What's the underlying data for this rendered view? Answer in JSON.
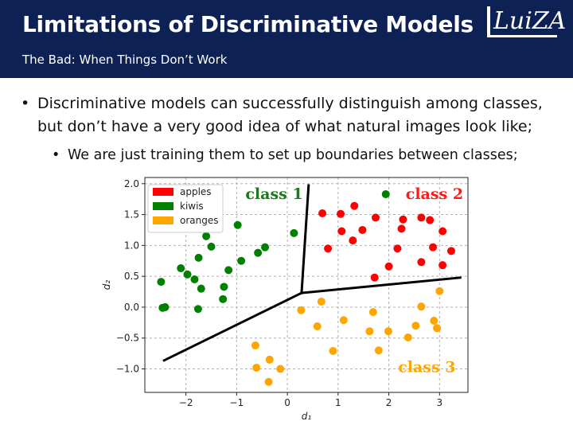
{
  "header": {
    "title": "Limitations of Discriminative Models",
    "subtitle": "The Bad: When Things Don’t Work",
    "logo": "LuiZA"
  },
  "bullets": [
    {
      "text": "Discriminative models can successfully distinguish among classes, but don’t have a very good idea of what natural images look like;"
    },
    {
      "text": "We are just training them to set up boundaries between classes;"
    }
  ],
  "colors": {
    "header_bg": "#0d2155",
    "apples": "#ff0000",
    "kiwis": "#008000",
    "oranges": "#ffa500"
  },
  "chart_data": {
    "type": "scatter",
    "xlabel": "d₁",
    "ylabel": "d₂",
    "xlim": [
      -2.81,
      3.56
    ],
    "ylim": [
      -1.38,
      2.1
    ],
    "xticks": [
      -2,
      -1,
      0,
      1,
      2,
      3
    ],
    "xtick_labels": [
      "−2",
      "−1",
      "0",
      "1",
      "2",
      "3"
    ],
    "yticks": [
      -1,
      -0.5,
      0,
      0.5,
      1,
      1.5,
      2
    ],
    "ytick_labels": [
      "−1.0",
      "−0.5",
      "0.0",
      "0.5",
      "1.0",
      "1.5",
      "2.0"
    ],
    "grid": true,
    "legend_position": "top-left",
    "series": [
      {
        "name": "apples",
        "color": "#ff0000",
        "points": [
          [
            0.69,
            1.52
          ],
          [
            1.05,
            1.51
          ],
          [
            1.32,
            1.64
          ],
          [
            1.74,
            1.45
          ],
          [
            2.28,
            1.42
          ],
          [
            2.64,
            1.45
          ],
          [
            2.81,
            1.41
          ],
          [
            2.25,
            1.27
          ],
          [
            1.07,
            1.23
          ],
          [
            1.48,
            1.25
          ],
          [
            1.29,
            1.08
          ],
          [
            3.06,
            1.23
          ],
          [
            0.8,
            0.95
          ],
          [
            2.17,
            0.95
          ],
          [
            2.87,
            0.97
          ],
          [
            3.23,
            0.91
          ],
          [
            2.64,
            0.73
          ],
          [
            3.06,
            0.68
          ],
          [
            2.0,
            0.66
          ],
          [
            1.72,
            0.48
          ]
        ]
      },
      {
        "name": "kiwis",
        "color": "#008000",
        "points": [
          [
            1.94,
            1.83
          ],
          [
            -0.98,
            1.33
          ],
          [
            0.13,
            1.2
          ],
          [
            -1.6,
            1.15
          ],
          [
            -1.5,
            0.98
          ],
          [
            -0.44,
            0.97
          ],
          [
            -0.58,
            0.88
          ],
          [
            -1.75,
            0.8
          ],
          [
            -0.91,
            0.75
          ],
          [
            -1.16,
            0.6
          ],
          [
            -2.1,
            0.63
          ],
          [
            -1.97,
            0.53
          ],
          [
            -1.83,
            0.45
          ],
          [
            -2.49,
            0.41
          ],
          [
            -1.7,
            0.3
          ],
          [
            -1.25,
            0.33
          ],
          [
            -1.27,
            0.13
          ],
          [
            -2.46,
            -0.01
          ],
          [
            -2.41,
            0.0
          ],
          [
            -1.76,
            -0.03
          ]
        ]
      },
      {
        "name": "oranges",
        "color": "#ffa500",
        "points": [
          [
            3.0,
            0.26
          ],
          [
            2.64,
            0.01
          ],
          [
            0.67,
            0.09
          ],
          [
            0.27,
            -0.05
          ],
          [
            1.69,
            -0.08
          ],
          [
            1.11,
            -0.21
          ],
          [
            0.59,
            -0.31
          ],
          [
            2.89,
            -0.22
          ],
          [
            2.95,
            -0.34
          ],
          [
            2.53,
            -0.3
          ],
          [
            1.62,
            -0.39
          ],
          [
            1.99,
            -0.39
          ],
          [
            2.38,
            -0.49
          ],
          [
            -0.63,
            -0.62
          ],
          [
            0.9,
            -0.71
          ],
          [
            1.8,
            -0.7
          ],
          [
            -0.35,
            -0.85
          ],
          [
            -0.61,
            -0.98
          ],
          [
            -0.14,
            -1.0
          ],
          [
            -0.37,
            -1.21
          ]
        ]
      }
    ],
    "boundaries": {
      "center": [
        0.28,
        0.23
      ],
      "ends": [
        [
          0.42,
          1.99
        ],
        [
          3.43,
          0.48
        ],
        [
          -2.45,
          -0.87
        ]
      ]
    },
    "annotations": [
      {
        "text": "class 1",
        "color": "#1a7a1a",
        "at": [
          -0.26,
          1.75
        ]
      },
      {
        "text": "class 2",
        "color": "#ff1a1a",
        "at": [
          2.9,
          1.75
        ]
      },
      {
        "text": "class 3",
        "color": "#ffa500",
        "at": [
          2.75,
          -1.05
        ]
      }
    ]
  }
}
